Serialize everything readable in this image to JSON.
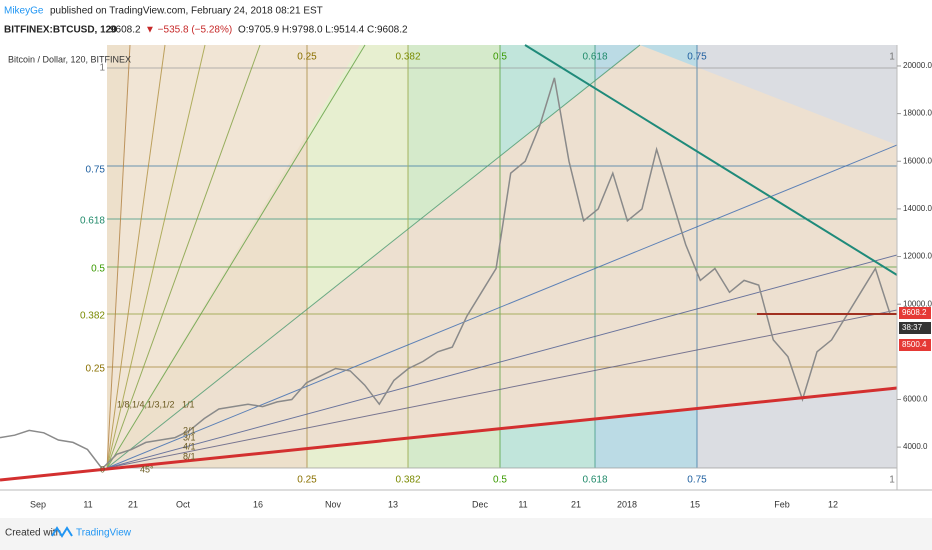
{
  "header": {
    "author": "MikeyGe",
    "published": "published on TradingView.com, February 24, 2018 08:21 EST",
    "symbol": "BITFINEX:BTCUSD, 120",
    "last": "9608.2",
    "change": "▼ −535.8 (−5.28%)",
    "ohlc": "O:9705.9 H:9798.0 L:9514.4 C:9608.2"
  },
  "chart_data": {
    "type": "line",
    "title": "Bitcoin / Dollar, 120, BITFINEX",
    "color": "#8a8a8a",
    "values": [
      4400,
      4500,
      4700,
      4600,
      4300,
      4200,
      3900,
      3100,
      3700,
      3900,
      4200,
      4300,
      4400,
      4700,
      5200,
      5600,
      5700,
      5800,
      5700,
      5900,
      6000,
      6700,
      7000,
      7300,
      7200,
      6600,
      5800,
      6800,
      7300,
      7600,
      8000,
      8200,
      9500,
      10500,
      11500,
      15500,
      16000,
      17500,
      19500,
      16000,
      13500,
      14000,
      15500,
      13500,
      14000,
      16500,
      14500,
      12500,
      11000,
      11500,
      10500,
      11000,
      10800,
      8500,
      7800,
      6000,
      8000,
      8500,
      9500,
      10500,
      11500,
      9600
    ],
    "ylim": [
      2200,
      20880
    ],
    "yticks": [
      {
        "value": 20000,
        "label": "20000.0"
      },
      {
        "value": 18000,
        "label": "18000.0"
      },
      {
        "value": 16000,
        "label": "16000.0"
      },
      {
        "value": 14000,
        "label": "14000.0"
      },
      {
        "value": 12000,
        "label": "12000.0"
      },
      {
        "value": 10000,
        "label": "10000.0"
      },
      {
        "value": 6000,
        "label": "6000.0"
      },
      {
        "value": 4000,
        "label": "4000.0"
      }
    ],
    "price_tags": [
      "9608.2",
      "38:37",
      "8500.4"
    ],
    "x_labels": [
      "Sep",
      "11",
      "21",
      "Oct",
      "16",
      "Nov",
      "13",
      "Dec",
      "11",
      "21",
      "2018",
      "15",
      "Feb",
      "12"
    ]
  },
  "fib_time_labels": [
    "0.25",
    "0.382",
    "0.5",
    "0.618",
    "0.75",
    "1"
  ],
  "fib_price_labels": [
    "1",
    "0.75",
    "0.618",
    "0.5",
    "0.382",
    "0.25"
  ],
  "fan_labels": [
    "1/8,1/4,1/3,1/2",
    "1/1",
    "2/1",
    "3/1",
    "4/1",
    "8/1",
    "45°",
    "0"
  ],
  "footer": {
    "created": "Created with",
    "brand": "TradingView"
  }
}
